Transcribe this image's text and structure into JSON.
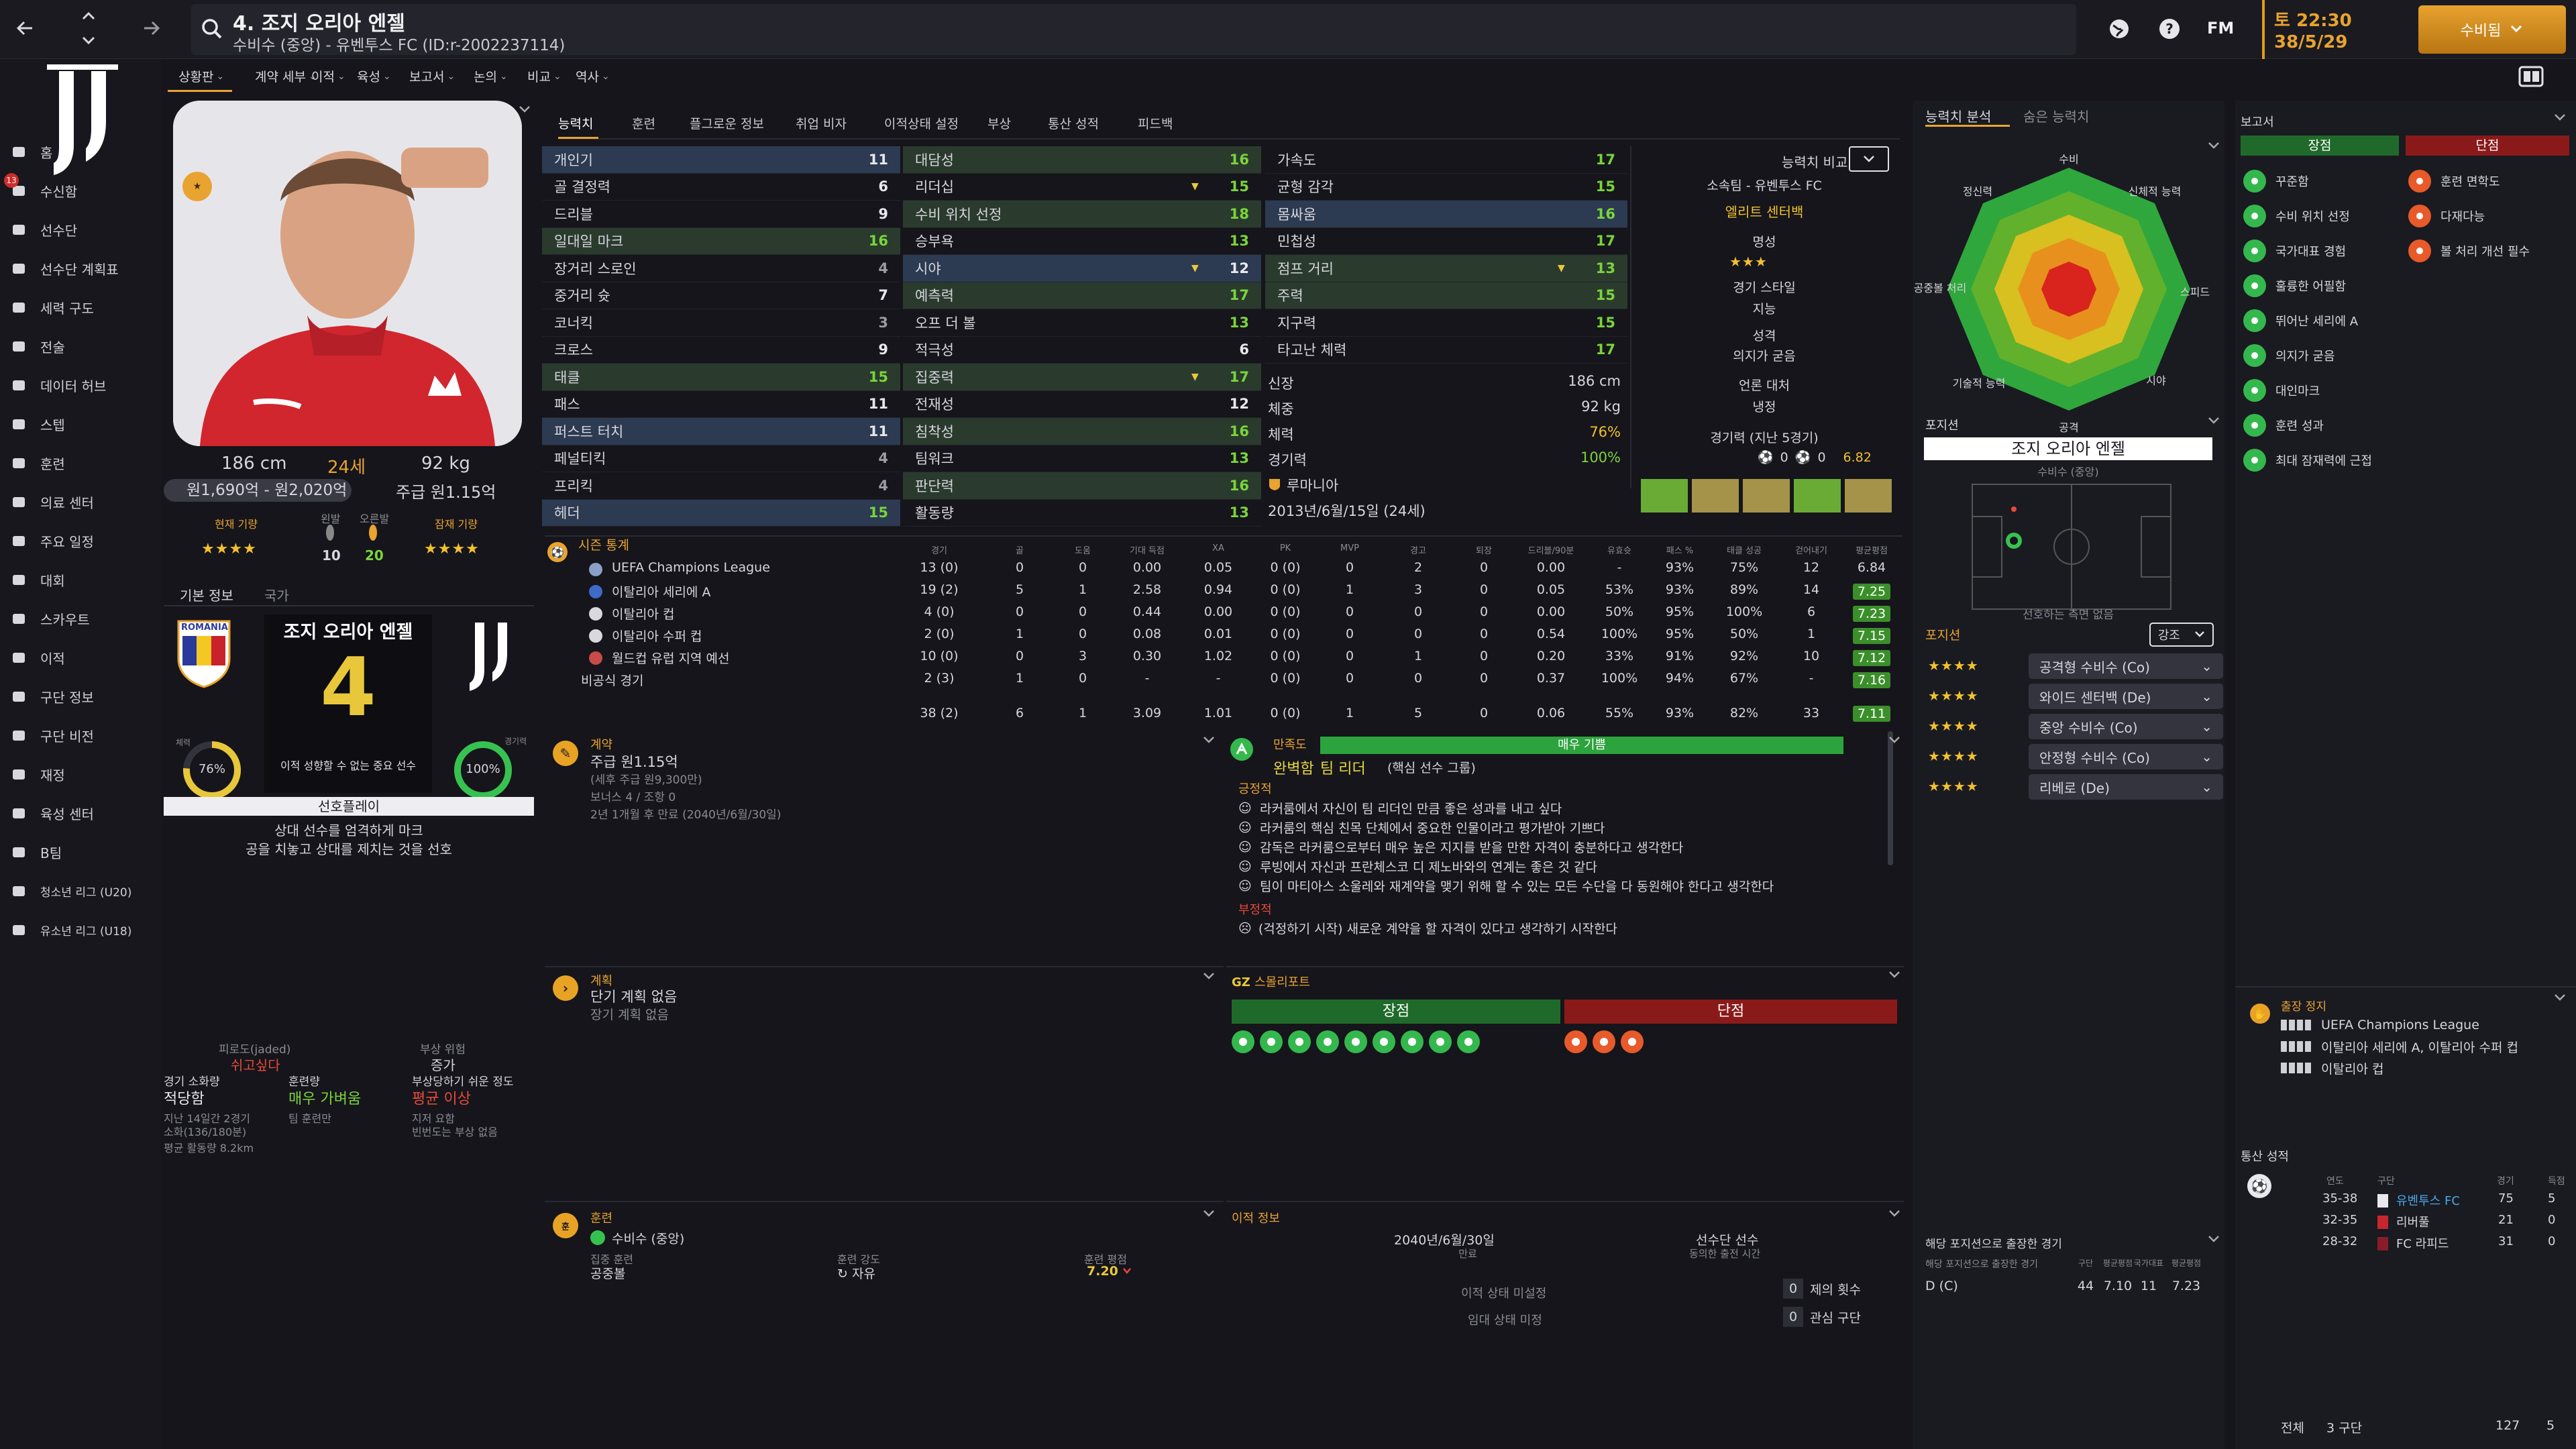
{
  "topbar": {
    "player_title": "4. 조지 오리아 엔젤",
    "player_sub": "수비수 (중앙) - 유벤투스 FC (ID:r-2002237114)",
    "date_time": "토 22:30",
    "date": "38/5/29",
    "continue_label": "수비됨",
    "fm_label": "FM"
  },
  "tabs_top": [
    "상황판",
    "계약 세부",
    "이적",
    "육성",
    "보고서",
    "논의",
    "비교",
    "역사"
  ],
  "tabs_attr": [
    "능력치",
    "훈련",
    "플그로운 정보",
    "취업 비자",
    "이적상태 설정",
    "부상",
    "통산 성적",
    "피드백"
  ],
  "sidebar": [
    "홈",
    "수신함",
    "선수단",
    "선수단 계획표",
    "세력 구도",
    "전술",
    "데이터 허브",
    "스텝",
    "훈련",
    "의료 센터",
    "주요 일정",
    "대회",
    "스카우트",
    "이적",
    "구단 정보",
    "구단 비전",
    "재정",
    "육성 센터",
    "B팀",
    "청소년 리그 (U20)",
    "유소년 리그 (U18)"
  ],
  "inbox_count": "13",
  "profile": {
    "height": "186 cm",
    "age": "24세",
    "weight": "92 kg",
    "value": "원1,690억 - 원2,020억",
    "wage": "주급 원1.15억",
    "current_label": "현재 기량",
    "potential_label": "잠재 기량",
    "left_foot_label": "왼발",
    "right_foot_label": "오른발",
    "left_foot": "10",
    "right_foot": "20",
    "current_stars": "★★★★",
    "potential_stars": "★★★★"
  },
  "basic_tabs": [
    "기본 정보",
    "국가"
  ],
  "card": {
    "name": "조지 오리아 엔젤",
    "number": "4",
    "fitness_label": "체력",
    "fitness": "76%",
    "match_label": "경기력",
    "match": "100%",
    "role_text": "이적 성향할 수 없는 중요 선수",
    "country_crest": "ROMÂNIA",
    "pref_label": "선호플레이",
    "pref_line1": "상대 선수를 엄격하게 마크",
    "pref_line2": "공을 치놓고 상대를 제치는 것을 선호"
  },
  "injury": {
    "c1_title": "피로도(jaded)",
    "c1_val": "쉬고싶다",
    "c2_title": "부상 위험",
    "c2_val": "증가",
    "r2c1_title": "경기 소화량",
    "r2c1_val": "적당함",
    "r2c2_title": "훈련량",
    "r2c2_val": "매우 가벼움",
    "r2c3_title": "부상당하기 쉬운 정도",
    "r2c3_val": "평균 이상",
    "r3c1": "지난 14일간 2경기",
    "r3c1b": "소화(136/180분)",
    "r3c2": "팀 훈련만",
    "r3c3": "지저 요함",
    "r3c3b": "빈번도는 부상 없음",
    "r4": "평균 활동량 8.2km"
  },
  "attrs_col1": [
    {
      "n": "개인기",
      "v": "11",
      "c": "w",
      "h": "hl"
    },
    {
      "n": "골 결정력",
      "v": "6",
      "c": "w",
      "h": ""
    },
    {
      "n": "드리블",
      "v": "9",
      "c": "w",
      "h": ""
    },
    {
      "n": "일대일 마크",
      "v": "16",
      "c": "g",
      "h": "hlg"
    },
    {
      "n": "장거리 스로인",
      "v": "4",
      "c": "d",
      "h": ""
    },
    {
      "n": "중거리 슛",
      "v": "7",
      "c": "w",
      "h": ""
    },
    {
      "n": "코너킥",
      "v": "3",
      "c": "d",
      "h": ""
    },
    {
      "n": "크로스",
      "v": "9",
      "c": "w",
      "h": ""
    },
    {
      "n": "태클",
      "v": "15",
      "c": "g",
      "h": "hlg"
    },
    {
      "n": "패스",
      "v": "11",
      "c": "w",
      "h": ""
    },
    {
      "n": "퍼스트 터치",
      "v": "11",
      "c": "w",
      "h": "hl"
    },
    {
      "n": "페널티킥",
      "v": "4",
      "c": "d",
      "h": ""
    },
    {
      "n": "프리킥",
      "v": "4",
      "c": "d",
      "h": ""
    },
    {
      "n": "헤더",
      "v": "15",
      "c": "g",
      "h": "hl"
    }
  ],
  "attrs_col2": [
    {
      "n": "대담성",
      "v": "16",
      "c": "g",
      "h": "hlg",
      "a": ""
    },
    {
      "n": "리더십",
      "v": "15",
      "c": "g",
      "h": "",
      "a": "▼"
    },
    {
      "n": "수비 위치 선정",
      "v": "18",
      "c": "g",
      "h": "hlg",
      "a": ""
    },
    {
      "n": "승부욕",
      "v": "13",
      "c": "g",
      "h": "",
      "a": ""
    },
    {
      "n": "시야",
      "v": "12",
      "c": "w",
      "h": "hl",
      "a": "▼"
    },
    {
      "n": "예측력",
      "v": "17",
      "c": "g",
      "h": "hlg",
      "a": ""
    },
    {
      "n": "오프 더 볼",
      "v": "13",
      "c": "g",
      "h": "",
      "a": ""
    },
    {
      "n": "적극성",
      "v": "6",
      "c": "w",
      "h": "",
      "a": ""
    },
    {
      "n": "집중력",
      "v": "17",
      "c": "g",
      "h": "hlg",
      "a": "▼"
    },
    {
      "n": "전재성",
      "v": "12",
      "c": "w",
      "h": "",
      "a": ""
    },
    {
      "n": "침착성",
      "v": "16",
      "c": "g",
      "h": "hlg",
      "a": ""
    },
    {
      "n": "팀워크",
      "v": "13",
      "c": "g",
      "h": "",
      "a": ""
    },
    {
      "n": "판단력",
      "v": "16",
      "c": "g",
      "h": "hlg",
      "a": ""
    },
    {
      "n": "활동량",
      "v": "13",
      "c": "g",
      "h": "",
      "a": ""
    }
  ],
  "attrs_col3": [
    {
      "n": "가속도",
      "v": "17",
      "c": "g",
      "h": "",
      "a": ""
    },
    {
      "n": "균형 감각",
      "v": "15",
      "c": "g",
      "h": "",
      "a": ""
    },
    {
      "n": "몸싸움",
      "v": "16",
      "c": "g",
      "h": "hl",
      "a": ""
    },
    {
      "n": "민첩성",
      "v": "17",
      "c": "g",
      "h": "",
      "a": ""
    },
    {
      "n": "점프 거리",
      "v": "13",
      "c": "g",
      "h": "hlg",
      "a": "▼"
    },
    {
      "n": "주력",
      "v": "15",
      "c": "g",
      "h": "hlg",
      "a": ""
    },
    {
      "n": "지구력",
      "v": "15",
      "c": "g",
      "h": "",
      "a": ""
    },
    {
      "n": "타고난 체력",
      "v": "17",
      "c": "g",
      "h": "",
      "a": ""
    }
  ],
  "physical": {
    "h_label": "신장",
    "h": "186 cm",
    "w_label": "체중",
    "w": "92 kg",
    "f_label": "체력",
    "f": "76%",
    "m_label": "경기력",
    "m": "100%",
    "nation": "루마니아",
    "dob": "2013년/6월/15일 (24세)",
    "extra": "₩ 유벤투스"
  },
  "compare": {
    "label": "능력치 비교",
    "club": "소속팀 - 유벤투스 FC",
    "role": "엘리트 센터백",
    "reputation_label": "명성",
    "rep_stars": "★★★",
    "style_label": "경기 스타일",
    "style": "지능",
    "personality_label": "성격",
    "personality": "의지가 굳음",
    "media_label": "언론 대처",
    "media": "냉정",
    "form_label": "경기력 (지난 5경기)",
    "form_goals": "0",
    "form_assists": "0",
    "form_rating": "6.82"
  },
  "stats": {
    "title": "시즌 통계",
    "headers": [
      "경기",
      "골",
      "도움",
      "기대 득점",
      "XA",
      "PK",
      "MVP",
      "경고",
      "퇴장",
      "드리블/90분",
      "유효슛",
      "패스 %",
      "태클 성공",
      "걷어내기",
      "평균평점"
    ],
    "rows": [
      {
        "comp": "UEFA Champions League",
        "v": [
          "13 (0)",
          "0",
          "0",
          "0.00",
          "0.05",
          "0 (0)",
          "0",
          "2",
          "0",
          "0.00",
          "-",
          "93%",
          "75%",
          "12",
          "6.84"
        ]
      },
      {
        "comp": "이탈리아 세리에 A",
        "v": [
          "19 (2)",
          "5",
          "1",
          "2.58",
          "0.94",
          "0 (0)",
          "1",
          "3",
          "0",
          "0.05",
          "53%",
          "93%",
          "89%",
          "14",
          "7.25"
        ]
      },
      {
        "comp": "이탈리아 컵",
        "v": [
          "4 (0)",
          "0",
          "0",
          "0.44",
          "0.00",
          "0 (0)",
          "0",
          "0",
          "0",
          "0.00",
          "50%",
          "95%",
          "100%",
          "6",
          "7.23"
        ]
      },
      {
        "comp": "이탈리아 수퍼 컵",
        "v": [
          "2 (0)",
          "1",
          "0",
          "0.08",
          "0.01",
          "0 (0)",
          "0",
          "0",
          "0",
          "0.54",
          "100%",
          "95%",
          "50%",
          "1",
          "7.15"
        ]
      },
      {
        "comp": "월드컵 유럽 지역 예선",
        "v": [
          "10 (0)",
          "0",
          "3",
          "0.30",
          "1.02",
          "0 (0)",
          "0",
          "1",
          "0",
          "0.20",
          "33%",
          "91%",
          "92%",
          "10",
          "7.12"
        ]
      },
      {
        "comp": "비공식 경기",
        "v": [
          "2 (3)",
          "1",
          "0",
          "-",
          "-",
          "0 (0)",
          "0",
          "0",
          "0",
          "0.37",
          "100%",
          "94%",
          "67%",
          "-",
          "7.16"
        ]
      }
    ],
    "total": [
      "38 (2)",
      "6",
      "1",
      "3.09",
      "1.01",
      "0 (0)",
      "1",
      "5",
      "0",
      "0.06",
      "55%",
      "93%",
      "82%",
      "33",
      "7.11"
    ]
  },
  "contract": {
    "title": "계약",
    "wage": "주급 원1.15억",
    "wage_sub": "(세후 주급 원9,300만)",
    "bonus": "보너스 4 / 조항 0",
    "expiry": "2년 1개월 후 만료 (2040년/6월/30일)"
  },
  "satisfaction": {
    "title": "만족도",
    "bar": "매우 기쁨",
    "status": "완벽함",
    "role": "팀 리더",
    "role_sub": "(핵심 선수 그룹)",
    "pos_label": "긍정적",
    "positives": [
      "라커룸에서 자신이 팀 리더인 만큼 좋은 성과를 내고 싶다",
      "라커룸의 핵심 친목 단체에서 중요한 인물이라고 평가받아 기쁘다",
      "감독은 라커룸으로부터 매우 높은 지지를 받을 만한 자격이 충분하다고 생각한다",
      "루빙에서 자신과 프란체스코 디 제노바와의 연계는 좋은 것 같다",
      "팀이 마티아스 소울레와 재계약을 맺기 위해 할 수 있는 모든 수단을 다 동원해야 한다고 생각한다"
    ],
    "neg_label": "부정적",
    "negative": "(걱정하기 시작) 새로운 계약을 할 자격이 있다고 생각하기 시작한다"
  },
  "plan": {
    "title": "계획",
    "line1": "단기 계획 없음",
    "line2": "장기 계획 없음"
  },
  "scout": {
    "title": "스몰리포트",
    "strengths": "장점",
    "weaknesses": "단점"
  },
  "training": {
    "title": "훈련",
    "position": "수비수 (중앙)",
    "focus_label": "집중 훈련",
    "focus": "공중볼",
    "intensity_label": "훈련 강도",
    "intensity": "자유",
    "rating_label": "훈련 평점",
    "rating": "7.20"
  },
  "transfer": {
    "title": "이적 정보",
    "date": "2040년/6월/30일",
    "date_label": "만료",
    "status": "선수단 선수",
    "status_sub": "동의한 출전 시간",
    "t1": "이적 상태 미설정",
    "t2": "임대 상태 미정",
    "offers_count": "0",
    "offers_label": "제의 횟수",
    "interest_count": "0",
    "interest_label": "관심 구단"
  },
  "right_tabs": [
    "능력치 분석",
    "숨은 능력치"
  ],
  "radar": {
    "labels": [
      "수비",
      "신체적 능력",
      "스피드",
      "시야",
      "공격",
      "기술적 능력",
      "공중볼 처리",
      "정신력"
    ]
  },
  "position": {
    "title": "포지션",
    "name": "조지 오리아 엔젤",
    "sub": "수비수 (중앙)",
    "note": "선호하는 측면 없음",
    "list_label": "포지션",
    "filter": "강조",
    "roles": [
      {
        "stars": "★★★★",
        "name": "공격형 수비수 (Co)"
      },
      {
        "stars": "★★★★",
        "name": "와이드 센터백 (De)"
      },
      {
        "stars": "★★★★",
        "name": "중앙 수비수 (Co)"
      },
      {
        "stars": "★★★★",
        "name": "안정형 수비수 (Co)"
      },
      {
        "stars": "★★★★",
        "name": "리베로 (De)"
      }
    ]
  },
  "report": {
    "title": "보고서",
    "strengths_label": "장점",
    "weaknesses_label": "단점",
    "strengths": [
      "꾸준함",
      "수비 위치 선정",
      "국가대표 경험",
      "훌륭한 어필함",
      "뛰어난 세리에 A",
      "의지가 굳음",
      "대인마크",
      "훈련 성과",
      "최대 잠재력에 근접"
    ],
    "weaknesses": [
      "훈련 면학도",
      "다재다능",
      "볼 처리 개선 필수"
    ]
  },
  "suspension": {
    "title": "출장 정지",
    "items": [
      "UEFA Champions League",
      "이탈리아 세리에 A, 이탈리아 수퍼 컵",
      "이탈리아 컵"
    ]
  },
  "career": {
    "title": "통산 성적",
    "headers": [
      "연도",
      "구단",
      "경기",
      "득점"
    ],
    "rows": [
      {
        "y": "35-38",
        "club": "유벤투스 FC",
        "g": "75",
        "s": "5"
      },
      {
        "y": "32-35",
        "club": "리버풀",
        "g": "21",
        "s": "0"
      },
      {
        "y": "28-32",
        "club": "FC 라피드",
        "g": "31",
        "s": "0"
      }
    ],
    "total_label": "전체",
    "total_clubs": "3 구단",
    "total_g": "127",
    "total_s": "5"
  },
  "pos_apps": {
    "title": "해당 포지션으로 출장한 경기",
    "sub": "해당 포지션으로 출장한 경기",
    "headers": [
      "구단",
      "평균평점",
      "국가대표",
      "평균평점"
    ],
    "row_pos": "D (C)",
    "row": [
      "44",
      "7.10",
      "11",
      "7.23"
    ]
  },
  "colors": {
    "accent": "#f0a020",
    "green": "#7bd43b",
    "red": "#c23030",
    "bg": "#15151b"
  }
}
